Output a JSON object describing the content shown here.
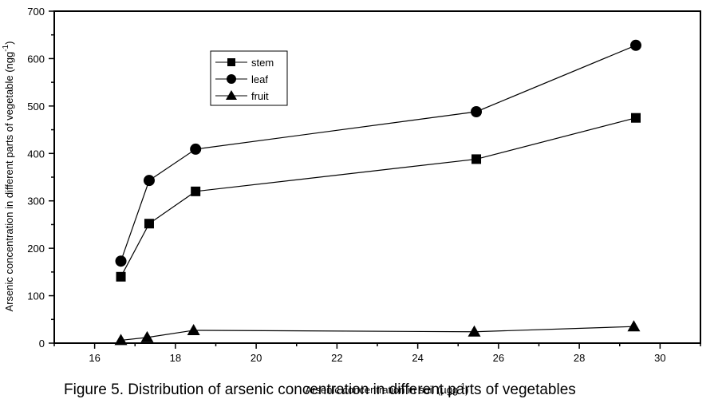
{
  "chart_data": {
    "type": "line",
    "xlabel": "Arsenic concentration in soil (µgg",
    "xlabel_sup": "-1",
    "xlabel_end": ")",
    "ylabel": "Arsenic concentration in different parts of vegetable (ngg",
    "ylabel_sup": "-1",
    "ylabel_end": ")",
    "xlim": [
      15,
      31
    ],
    "ylim": [
      0,
      700
    ],
    "xticks": [
      16,
      18,
      20,
      22,
      24,
      26,
      28,
      30
    ],
    "yticks": [
      0,
      100,
      200,
      300,
      400,
      500,
      600,
      700
    ],
    "legend_position": "upper-left",
    "series": [
      {
        "name": "stem",
        "marker": "square",
        "x": [
          16.65,
          17.35,
          18.5,
          25.45,
          29.4
        ],
        "y": [
          140,
          252,
          320,
          388,
          475
        ]
      },
      {
        "name": "leaf",
        "marker": "circle",
        "x": [
          16.65,
          17.35,
          18.5,
          25.45,
          29.4
        ],
        "y": [
          173,
          343,
          409,
          488,
          628
        ]
      },
      {
        "name": "fruit",
        "marker": "triangle",
        "x": [
          16.65,
          17.3,
          18.45,
          25.4,
          29.35
        ],
        "y": [
          6,
          12,
          27,
          24,
          35
        ]
      }
    ]
  },
  "caption": "Figure 5. Distribution of arsenic concentration in different parts of vegetables"
}
